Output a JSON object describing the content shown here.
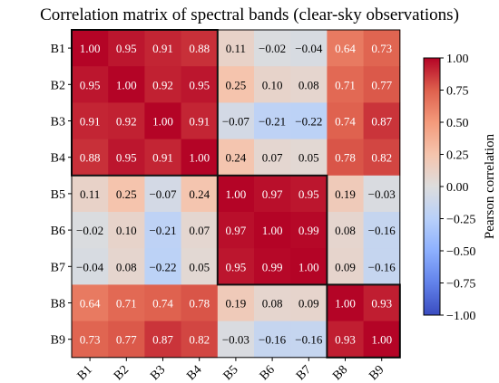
{
  "chart_data": {
    "type": "heatmap",
    "title": "Correlation matrix of spectral bands (clear-sky observations)",
    "row_labels": [
      "B1",
      "B2",
      "B3",
      "B4",
      "B5",
      "B6",
      "B7",
      "B8",
      "B9"
    ],
    "col_labels": [
      "B1",
      "B2",
      "B3",
      "B4",
      "B5",
      "B6",
      "B7",
      "B8",
      "B9"
    ],
    "values": [
      [
        1.0,
        0.95,
        0.91,
        0.88,
        0.11,
        -0.02,
        -0.04,
        0.64,
        0.73
      ],
      [
        0.95,
        1.0,
        0.92,
        0.95,
        0.25,
        0.1,
        0.08,
        0.71,
        0.77
      ],
      [
        0.91,
        0.92,
        1.0,
        0.91,
        -0.07,
        -0.21,
        -0.22,
        0.74,
        0.87
      ],
      [
        0.88,
        0.95,
        0.91,
        1.0,
        0.24,
        0.07,
        0.05,
        0.78,
        0.82
      ],
      [
        0.11,
        0.25,
        -0.07,
        0.24,
        1.0,
        0.97,
        0.95,
        0.19,
        -0.03
      ],
      [
        -0.02,
        0.1,
        -0.21,
        0.07,
        0.97,
        1.0,
        0.99,
        0.08,
        -0.16
      ],
      [
        -0.04,
        0.08,
        -0.22,
        0.05,
        0.95,
        0.99,
        1.0,
        0.09,
        -0.16
      ],
      [
        0.64,
        0.71,
        0.74,
        0.78,
        0.19,
        0.08,
        0.09,
        1.0,
        0.93
      ],
      [
        0.73,
        0.77,
        0.87,
        0.82,
        -0.03,
        -0.16,
        -0.16,
        0.93,
        1.0
      ]
    ],
    "colormap": "coolwarm",
    "vmin": -1.0,
    "vmax": 1.0,
    "colorbar": {
      "label": "Pearson correlation",
      "ticks": [
        "1.00",
        "0.75",
        "0.50",
        "0.25",
        "0.00",
        "−0.25",
        "−0.50",
        "−0.75",
        "−1.00"
      ],
      "tick_values": [
        1.0,
        0.75,
        0.5,
        0.25,
        0.0,
        -0.25,
        -0.5,
        -0.75,
        -1.0
      ]
    },
    "block_outlines": [
      {
        "rows": [
          0,
          3
        ],
        "cols": [
          0,
          3
        ]
      },
      {
        "rows": [
          4,
          6
        ],
        "cols": [
          4,
          6
        ]
      },
      {
        "rows": [
          7,
          8
        ],
        "cols": [
          7,
          8
        ]
      }
    ],
    "x_tick_rotation": "45deg"
  }
}
